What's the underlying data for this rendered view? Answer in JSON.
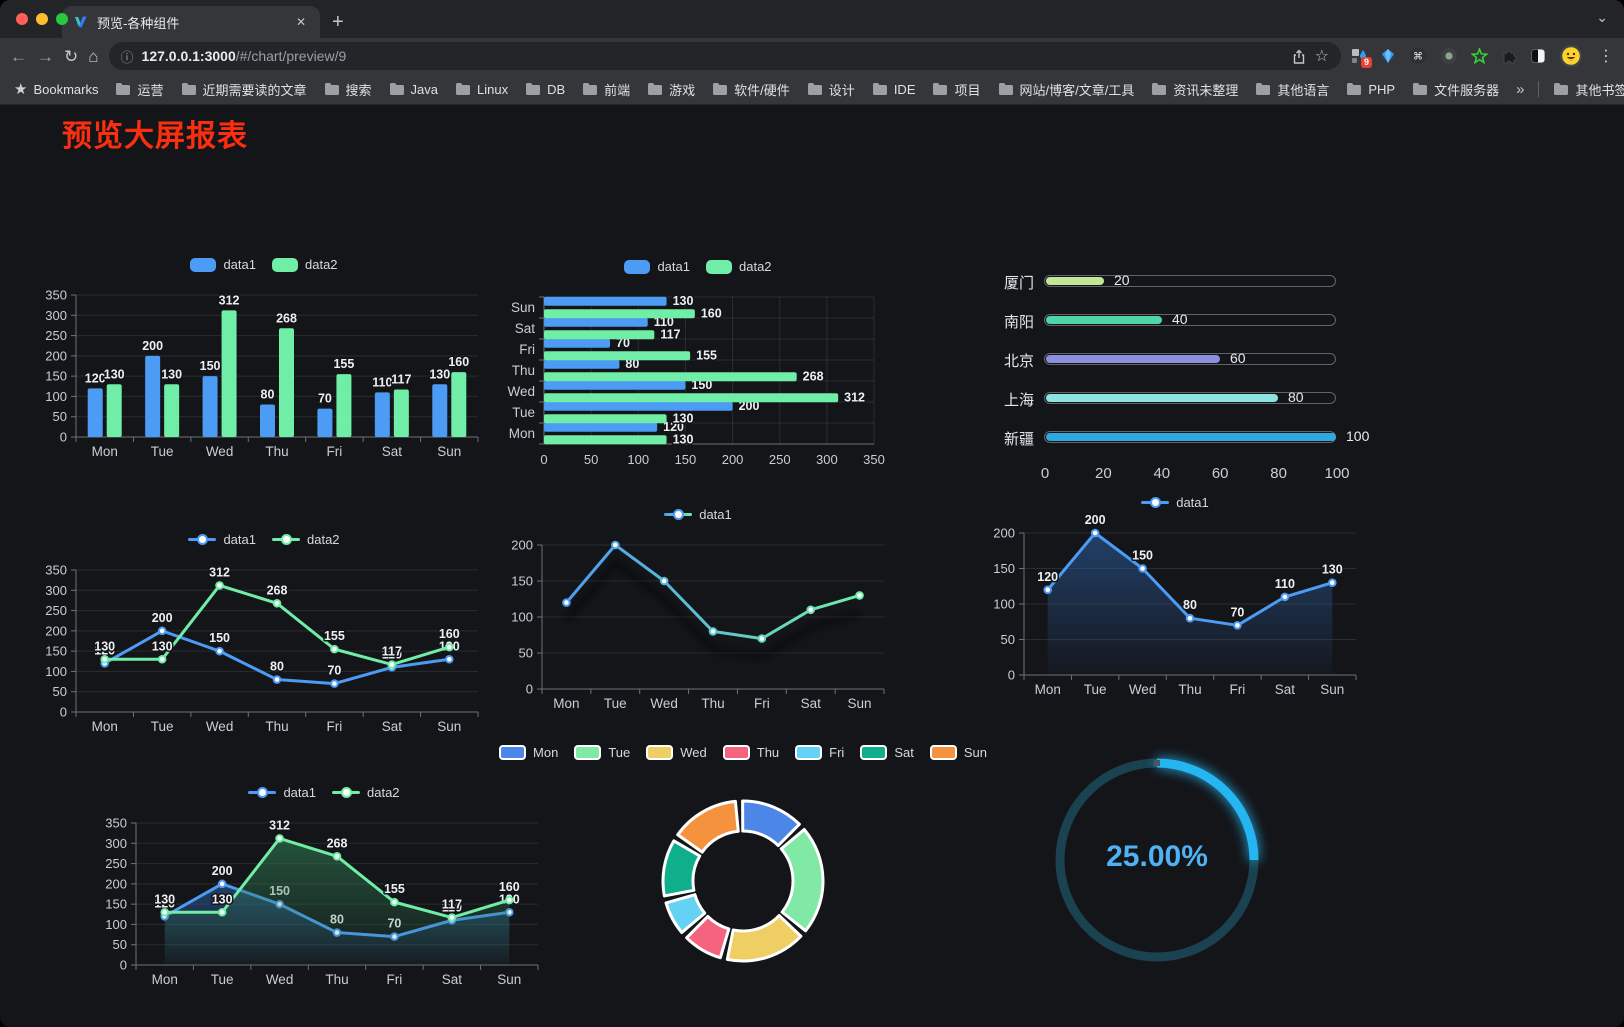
{
  "browser": {
    "tab": {
      "title": "预览-各种组件",
      "close_glyph": "✕",
      "new_tab_glyph": "+",
      "strip_chevron_glyph": "⌄"
    },
    "toolbar": {
      "back_glyph": "←",
      "forward_glyph": "→",
      "reload_glyph": "↻",
      "home_glyph": "⌂",
      "info_glyph": "ⓘ",
      "url_host": "127.0.0.1:3000",
      "url_path": "/#/chart/preview/9",
      "star_glyph": "☆",
      "menu_glyph": "⋮",
      "extension_badge": "9"
    },
    "bookmarks": {
      "star_glyph": "★",
      "label": "Bookmarks",
      "items": [
        "运营",
        "近期需要读的文章",
        "搜索",
        "Java",
        "Linux",
        "DB",
        "前端",
        "游戏",
        "软件/硬件",
        "设计",
        "IDE",
        "项目",
        "网站/博客/文章/工具",
        "资讯未整理",
        "其他语言",
        "PHP",
        "文件服务器"
      ],
      "overflow_glyph": "»",
      "other_label": "其他书签"
    }
  },
  "page": {
    "title": "预览大屏报表",
    "title_color": "#fb2f10",
    "background": "#141519"
  },
  "chart_data": [
    {
      "id": "bar-grouped",
      "type": "bar",
      "categories": [
        "Mon",
        "Tue",
        "Wed",
        "Thu",
        "Fri",
        "Sat",
        "Sun"
      ],
      "series": [
        {
          "name": "data1",
          "color": "#4C9BF5",
          "values": [
            120,
            200,
            150,
            80,
            70,
            110,
            130
          ]
        },
        {
          "name": "data2",
          "color": "#70EDA6",
          "values": [
            130,
            130,
            312,
            268,
            155,
            117,
            160
          ]
        }
      ],
      "ylim": [
        0,
        350
      ],
      "ystep": 50,
      "legend_style": "rect",
      "grid": true
    },
    {
      "id": "hbar-grouped",
      "type": "hbar",
      "categories_top_to_bottom": [
        "Sun",
        "Sat",
        "Fri",
        "Thu",
        "Wed",
        "Tue",
        "Mon"
      ],
      "series": [
        {
          "name": "data1",
          "color": "#4C9BF5",
          "values": [
            130,
            110,
            70,
            80,
            150,
            200,
            120
          ]
        },
        {
          "name": "data2",
          "color": "#70EDA6",
          "values": [
            160,
            117,
            155,
            268,
            312,
            130,
            130
          ]
        }
      ],
      "xlim": [
        0,
        350
      ],
      "xstep": 50,
      "legend_style": "rect",
      "grid": true
    },
    {
      "id": "city-progress",
      "type": "progress",
      "rows": [
        {
          "label": "厦门",
          "value": 20,
          "color": "#C3E796"
        },
        {
          "label": "南阳",
          "value": 40,
          "color": "#4FD6A4"
        },
        {
          "label": "北京",
          "value": 60,
          "color": "#8A90DF"
        },
        {
          "label": "上海",
          "value": 80,
          "color": "#8CE4E1"
        },
        {
          "label": "新疆",
          "value": 100,
          "color": "#2EA9DF"
        }
      ],
      "xlim": [
        0,
        100
      ],
      "xstep": 20
    },
    {
      "id": "line-two",
      "type": "line",
      "categories": [
        "Mon",
        "Tue",
        "Wed",
        "Thu",
        "Fri",
        "Sat",
        "Sun"
      ],
      "series": [
        {
          "name": "data1",
          "color": "#4C9BF5",
          "values": [
            120,
            200,
            150,
            80,
            70,
            110,
            130
          ]
        },
        {
          "name": "data2",
          "color": "#70EDA6",
          "values": [
            130,
            130,
            312,
            268,
            155,
            117,
            160
          ]
        }
      ],
      "ylim": [
        0,
        350
      ],
      "ystep": 50,
      "labels": true,
      "legend_style": "circle"
    },
    {
      "id": "line-gradient",
      "type": "line",
      "categories": [
        "Mon",
        "Tue",
        "Wed",
        "Thu",
        "Fri",
        "Sat",
        "Sun"
      ],
      "series": [
        {
          "name": "data1",
          "gradient": [
            "#4C9BF5",
            "#70EDA6"
          ],
          "values": [
            120,
            200,
            150,
            80,
            70,
            110,
            130
          ]
        }
      ],
      "ylim": [
        0,
        200
      ],
      "ystep": 50,
      "labels": false,
      "shadow": true,
      "legend_style": "circle"
    },
    {
      "id": "line-area",
      "type": "line",
      "categories": [
        "Mon",
        "Tue",
        "Wed",
        "Thu",
        "Fri",
        "Sat",
        "Sun"
      ],
      "series": [
        {
          "name": "data1",
          "color": "#4C9BF5",
          "area": true,
          "area_color": "#2B5D9E",
          "values": [
            120,
            200,
            150,
            80,
            70,
            110,
            130
          ]
        }
      ],
      "ylim": [
        0,
        200
      ],
      "ystep": 50,
      "labels": true,
      "legend_style": "circle"
    },
    {
      "id": "area-two",
      "type": "line",
      "categories": [
        "Mon",
        "Tue",
        "Wed",
        "Thu",
        "Fri",
        "Sat",
        "Sun"
      ],
      "series": [
        {
          "name": "data1",
          "color": "#4C9BF5",
          "area": true,
          "area_color": "#2B5D9E",
          "values": [
            120,
            200,
            150,
            80,
            70,
            110,
            130
          ]
        },
        {
          "name": "data2",
          "color": "#70EDA6",
          "area": true,
          "area_color": "#2F7D52",
          "values": [
            130,
            130,
            312,
            268,
            155,
            117,
            160
          ]
        }
      ],
      "ylim": [
        0,
        350
      ],
      "ystep": 50,
      "labels": true,
      "legend_style": "circle"
    },
    {
      "id": "donut",
      "type": "pie",
      "categories": [
        "Mon",
        "Tue",
        "Wed",
        "Thu",
        "Fri",
        "Sat",
        "Sun"
      ],
      "values": [
        120,
        200,
        150,
        80,
        70,
        110,
        130
      ],
      "colors": [
        "#4C87E8",
        "#7FE9A5",
        "#EFCE63",
        "#F4647E",
        "#63D2F5",
        "#0FAF8B",
        "#F5923E"
      ],
      "legend_style": "border-rect"
    },
    {
      "id": "gauge",
      "type": "gauge",
      "value": 25,
      "label": "25.00%",
      "color": "#25B6F2",
      "track_color": "#1A4250",
      "label_color": "#4FB2F5"
    }
  ]
}
